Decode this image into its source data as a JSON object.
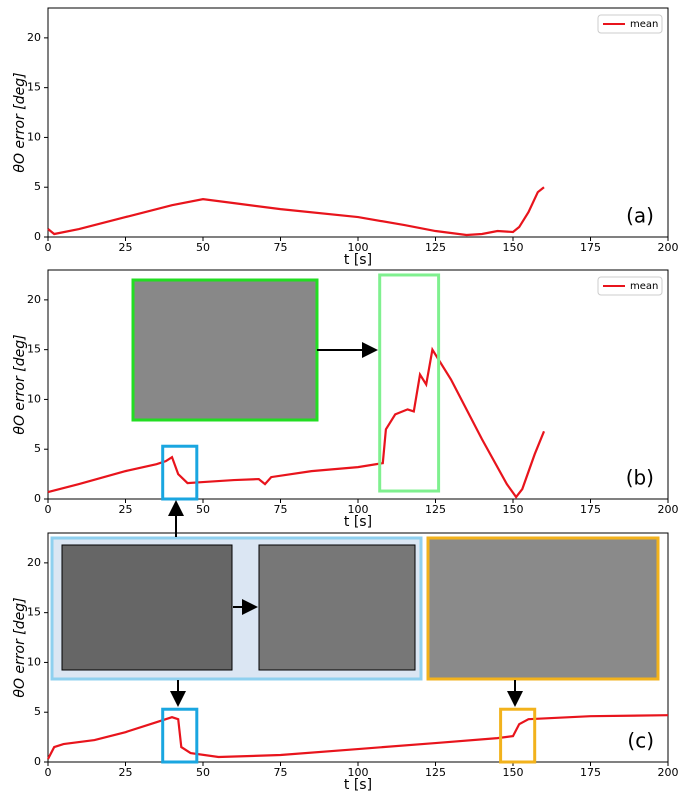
{
  "chart_data": [
    {
      "type": "line",
      "annotation": "(a)",
      "xlabel": "t [s]",
      "ylabel": "θO error [deg]",
      "x": [
        0,
        2,
        10,
        25,
        40,
        50,
        60,
        75,
        100,
        115,
        125,
        135,
        140,
        145,
        150,
        152,
        155,
        158,
        160
      ],
      "series": [
        {
          "name": "mean",
          "color": "#e8141c",
          "values": [
            0.8,
            0.3,
            0.8,
            2.0,
            3.2,
            3.8,
            3.4,
            2.8,
            2.0,
            1.2,
            0.6,
            0.2,
            0.3,
            0.6,
            0.5,
            1.0,
            2.5,
            4.5,
            5.0
          ]
        }
      ],
      "xlim": [
        0,
        200
      ],
      "xticks": [
        0,
        25,
        50,
        75,
        100,
        125,
        150,
        175,
        200
      ],
      "ylim": [
        0,
        23
      ],
      "yticks": [
        0,
        5,
        10,
        15,
        20
      ],
      "legend": "upper right"
    },
    {
      "type": "line",
      "annotation": "(b)",
      "xlabel": "t [s]",
      "ylabel": "θO error [deg]",
      "x": [
        0,
        10,
        25,
        35,
        38,
        40,
        42,
        45,
        50,
        60,
        68,
        70,
        72,
        85,
        100,
        108,
        109,
        112,
        116,
        118,
        120,
        122,
        124,
        130,
        140,
        148,
        151,
        153,
        157,
        160
      ],
      "series": [
        {
          "name": "mean",
          "color": "#e8141c",
          "values": [
            0.7,
            1.5,
            2.8,
            3.5,
            3.8,
            4.2,
            2.5,
            1.6,
            1.7,
            1.9,
            2.0,
            1.5,
            2.2,
            2.8,
            3.2,
            3.6,
            7.0,
            8.5,
            9.0,
            8.8,
            12.5,
            11.5,
            15.0,
            12.0,
            6.0,
            1.5,
            0.2,
            1.0,
            4.5,
            6.8
          ]
        }
      ],
      "xlim": [
        0,
        200
      ],
      "xticks": [
        0,
        25,
        50,
        75,
        100,
        125,
        150,
        175,
        200
      ],
      "ylim": [
        0,
        23
      ],
      "yticks": [
        0,
        5,
        10,
        15,
        20
      ],
      "legend": "upper right"
    },
    {
      "type": "line",
      "annotation": "(c)",
      "xlabel": "t [s]",
      "ylabel": "θO error [deg]",
      "x": [
        0,
        2,
        5,
        15,
        25,
        35,
        40,
        42,
        43,
        46,
        55,
        75,
        100,
        125,
        145,
        150,
        152,
        155,
        175,
        200
      ],
      "series": [
        {
          "color": "#e8141c",
          "values": [
            0.3,
            1.5,
            1.8,
            2.2,
            3.0,
            4.0,
            4.5,
            4.3,
            1.5,
            0.9,
            0.5,
            0.7,
            1.3,
            1.9,
            2.4,
            2.6,
            3.8,
            4.3,
            4.6,
            4.7
          ]
        }
      ],
      "xlim": [
        0,
        200
      ],
      "xticks": [
        0,
        25,
        50,
        75,
        100,
        125,
        150,
        175,
        200
      ],
      "ylim": [
        0,
        23
      ],
      "yticks": [
        0,
        5,
        10,
        15,
        20
      ]
    }
  ]
}
